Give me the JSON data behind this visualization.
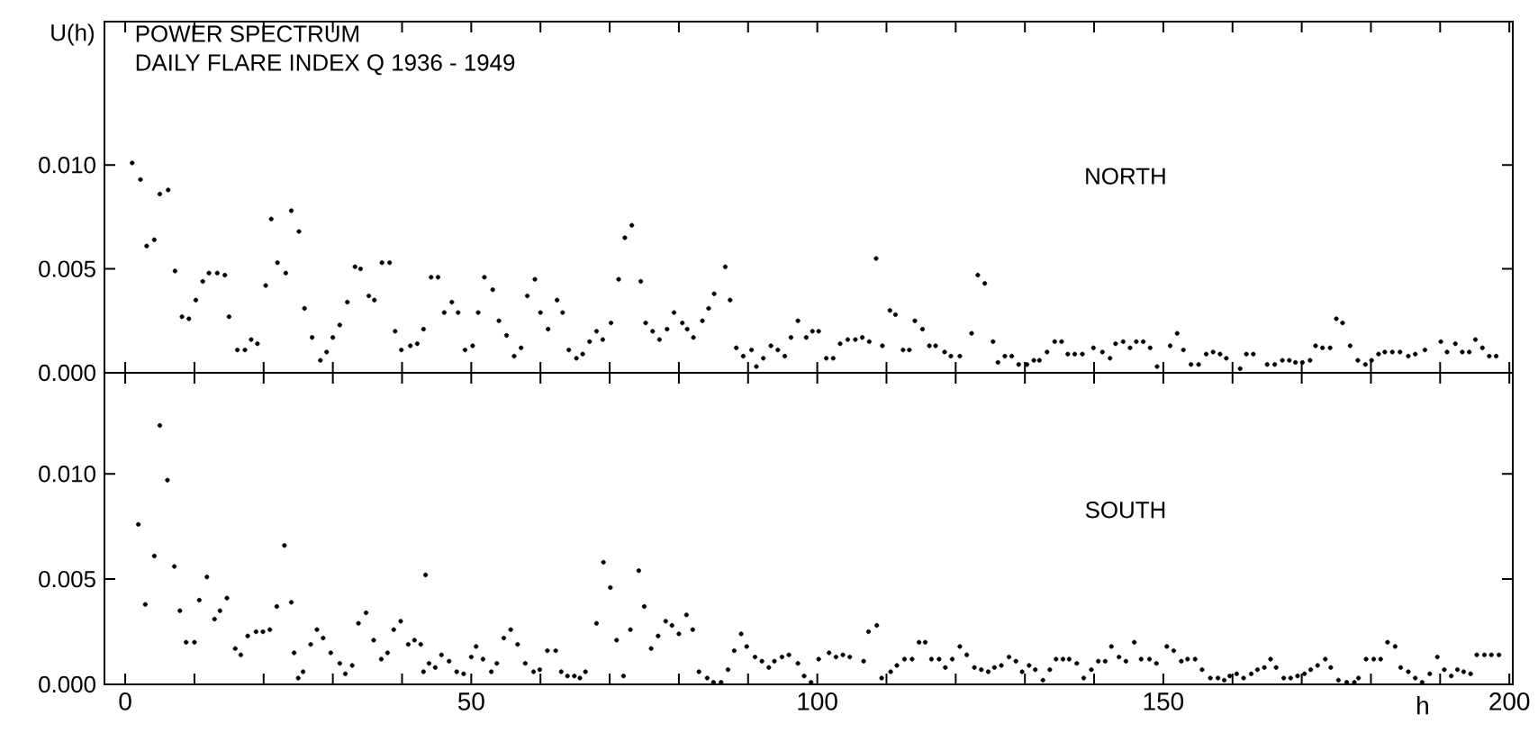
{
  "chart_data": [
    {
      "type": "scatter",
      "title": "POWER SPECTRUM",
      "subtitle": "DAILY FLARE INDEX Q  1936 - 1949",
      "ylabel": "U(h)",
      "annotations": [
        "NORTH"
      ],
      "color": "#000000",
      "marker": "circle",
      "tick_labels": "y",
      "xlim": [
        -3,
        200.5
      ],
      "ylim": [
        0,
        0.0169
      ],
      "xticks": [
        0,
        {
          "value": 10,
          "label": null
        },
        {
          "value": 20,
          "label": null
        },
        {
          "value": 30,
          "label": null
        },
        {
          "value": 40,
          "label": null
        },
        50,
        {
          "value": 60,
          "label": null
        },
        {
          "value": 70,
          "label": null
        },
        {
          "value": 80,
          "label": null
        },
        {
          "value": 90,
          "label": null
        },
        100,
        {
          "value": 110,
          "label": null
        },
        {
          "value": 120,
          "label": null
        },
        {
          "value": 130,
          "label": null
        },
        {
          "value": 140,
          "label": null
        },
        150,
        {
          "value": 160,
          "label": null
        },
        {
          "value": 170,
          "label": null
        },
        {
          "value": 180,
          "label": null
        },
        {
          "value": 190,
          "label": null
        },
        200
      ],
      "yticks": [
        {
          "value": 0,
          "label": "0.000"
        },
        {
          "value": 0.005,
          "label": "0.005"
        },
        {
          "value": 0.01,
          "label": "0.010"
        }
      ],
      "x": [
        1.0,
        2.2,
        3.1,
        4.2,
        5.0,
        6.2,
        7.2,
        8.2,
        9.2,
        10.2,
        11.2,
        12.1,
        13.3,
        14.4,
        15.0,
        16.2,
        17.3,
        18.2,
        19.1,
        20.3,
        21.1,
        22.0,
        23.2,
        24.0,
        25.1,
        25.9,
        27.0,
        28.2,
        29.1,
        30.0,
        31.0,
        32.1,
        33.2,
        34.0,
        35.2,
        36.0,
        37.1,
        38.2,
        39.0,
        39.9,
        41.2,
        42.2,
        43.1,
        44.2,
        45.2,
        46.1,
        47.2,
        48.1,
        49.1,
        50.2,
        51.0,
        51.9,
        53.1,
        54.0,
        55.1,
        56.2,
        57.2,
        58.1,
        59.2,
        60.0,
        61.1,
        62.4,
        63.2,
        64.1,
        65.2,
        66.1,
        67.1,
        68.1,
        69.0,
        70.2,
        71.3,
        72.2,
        73.2,
        74.5,
        75.2,
        76.2,
        77.2,
        78.3,
        79.3,
        80.5,
        81.2,
        82.1,
        83.4,
        84.3,
        85.1,
        86.7,
        87.4,
        88.3,
        89.3,
        90.5,
        91.2,
        92.2,
        93.3,
        94.3,
        95.3,
        96.2,
        97.2,
        98.4,
        99.3,
        100.2,
        101.3,
        102.3,
        103.3,
        104.4,
        105.5,
        106.5,
        107.5,
        108.5,
        109.4,
        110.5,
        111.3,
        112.4,
        113.3,
        114.1,
        115.2,
        116.2,
        117.1,
        118.4,
        119.3,
        120.6,
        122.3,
        123.2,
        124.2,
        125.4,
        126.1,
        127.1,
        128.1,
        129.1,
        130.3,
        131.3,
        132.1,
        133.2,
        134.3,
        135.3,
        136.2,
        137.2,
        138.3,
        139.9,
        141.2,
        142.3,
        143.1,
        144.2,
        145.2,
        146.1,
        147.1,
        148.1,
        149.1,
        151.0,
        152.0,
        152.9,
        154.0,
        155.1,
        156.2,
        157.2,
        158.2,
        159.1,
        161.1,
        162.0,
        163.0,
        165.0,
        166.1,
        167.2,
        168.2,
        169.1,
        170.1,
        171.2,
        172.0,
        173.0,
        174.1,
        175.0,
        175.9,
        177.0,
        178.1,
        179.2,
        180.1,
        181.1,
        182.0,
        183.1,
        184.2,
        185.4,
        186.4,
        187.8,
        190.1,
        191.0,
        192.2,
        193.2,
        194.2,
        195.1,
        196.1,
        197.1,
        198.1
      ],
      "values": [
        0.0101,
        0.0093,
        0.0061,
        0.0064,
        0.0086,
        0.0088,
        0.0049,
        0.0027,
        0.0026,
        0.0035,
        0.0044,
        0.0048,
        0.0048,
        0.0047,
        0.0027,
        0.0011,
        0.0011,
        0.0016,
        0.0014,
        0.0042,
        0.0074,
        0.0053,
        0.0048,
        0.0078,
        0.0068,
        0.0031,
        0.0017,
        0.0006,
        0.001,
        0.0017,
        0.0023,
        0.0034,
        0.0051,
        0.005,
        0.0037,
        0.0035,
        0.0053,
        0.0053,
        0.002,
        0.0011,
        0.0013,
        0.0014,
        0.0021,
        0.0046,
        0.0046,
        0.0029,
        0.0034,
        0.0029,
        0.0011,
        0.0013,
        0.0029,
        0.0046,
        0.004,
        0.0025,
        0.0018,
        0.0008,
        0.0012,
        0.0037,
        0.0045,
        0.0029,
        0.0021,
        0.0035,
        0.0029,
        0.0011,
        0.0007,
        0.0009,
        0.0015,
        0.002,
        0.0016,
        0.0024,
        0.0045,
        0.0065,
        0.0071,
        0.0044,
        0.0024,
        0.002,
        0.0016,
        0.0021,
        0.0029,
        0.0024,
        0.0021,
        0.0017,
        0.0025,
        0.0031,
        0.0038,
        0.0051,
        0.0035,
        0.0012,
        0.0008,
        0.0011,
        0.0003,
        0.0007,
        0.0013,
        0.0011,
        0.0008,
        0.0017,
        0.0025,
        0.0017,
        0.002,
        0.002,
        0.0007,
        0.0007,
        0.0014,
        0.0016,
        0.0016,
        0.0017,
        0.0015,
        0.0055,
        0.0013,
        0.003,
        0.0028,
        0.0011,
        0.0011,
        0.0025,
        0.0021,
        0.0013,
        0.0013,
        0.001,
        0.0008,
        0.0008,
        0.0019,
        0.0047,
        0.0043,
        0.0015,
        0.0005,
        0.0008,
        0.0008,
        0.0004,
        0.0004,
        0.0006,
        0.0006,
        0.001,
        0.0015,
        0.0015,
        0.0009,
        0.0009,
        0.0009,
        0.0012,
        0.001,
        0.0007,
        0.0014,
        0.0015,
        0.0012,
        0.0015,
        0.0015,
        0.0012,
        0.0003,
        0.0013,
        0.0019,
        0.0011,
        0.0004,
        0.0004,
        0.0009,
        0.001,
        0.0009,
        0.0007,
        0.0002,
        0.0009,
        0.0009,
        0.0004,
        0.0004,
        0.0006,
        0.0006,
        0.0005,
        0.0005,
        0.0006,
        0.0013,
        0.0012,
        0.0012,
        0.0026,
        0.0024,
        0.0013,
        0.0006,
        0.0004,
        0.0006,
        0.0009,
        0.001,
        0.001,
        0.001,
        0.0008,
        0.0009,
        0.0011,
        0.0015,
        0.001,
        0.0014,
        0.001,
        0.001,
        0.0016,
        0.0012,
        0.0008,
        0.0008
      ]
    },
    {
      "type": "scatter",
      "xlabel": "h",
      "annotations": [
        "SOUTH"
      ],
      "color": "#000000",
      "marker": "circle",
      "xlim": [
        -3,
        200.5
      ],
      "ylim": [
        0,
        0.0148
      ],
      "xticks": [
        0,
        {
          "value": 10,
          "label": null
        },
        {
          "value": 20,
          "label": null
        },
        {
          "value": 30,
          "label": null
        },
        {
          "value": 40,
          "label": null
        },
        50,
        {
          "value": 60,
          "label": null
        },
        {
          "value": 70,
          "label": null
        },
        {
          "value": 80,
          "label": null
        },
        {
          "value": 90,
          "label": null
        },
        100,
        {
          "value": 110,
          "label": null
        },
        {
          "value": 120,
          "label": null
        },
        {
          "value": 130,
          "label": null
        },
        {
          "value": 140,
          "label": null
        },
        150,
        {
          "value": 160,
          "label": null
        },
        {
          "value": 170,
          "label": null
        },
        {
          "value": 180,
          "label": null
        },
        {
          "value": 190,
          "label": null
        },
        200
      ],
      "yticks": [
        {
          "value": 0,
          "label": "0.000"
        },
        {
          "value": 0.005,
          "label": "0.005"
        },
        {
          "value": 0.01,
          "label": "0.010"
        }
      ],
      "x": [
        1.9,
        2.9,
        4.2,
        5.0,
        6.1,
        7.1,
        7.9,
        8.8,
        10.0,
        10.7,
        11.8,
        12.9,
        13.7,
        14.7,
        15.9,
        16.7,
        17.7,
        18.9,
        19.9,
        20.9,
        21.9,
        23.0,
        24.0,
        24.4,
        25.0,
        25.7,
        26.8,
        27.7,
        28.6,
        29.7,
        31.0,
        31.8,
        32.8,
        33.7,
        34.8,
        35.9,
        37.0,
        37.9,
        38.8,
        39.8,
        40.9,
        41.8,
        42.7,
        43.1,
        43.4,
        43.9,
        44.8,
        45.7,
        46.8,
        47.9,
        48.9,
        50.0,
        50.7,
        51.7,
        52.9,
        53.7,
        54.7,
        55.7,
        56.7,
        57.8,
        59.0,
        59.9,
        61.0,
        62.2,
        63.0,
        63.9,
        64.9,
        65.7,
        66.5,
        68.1,
        69.1,
        70.1,
        71.0,
        72.0,
        73.0,
        74.2,
        75.0,
        76.0,
        77.0,
        78.1,
        79.0,
        80.0,
        81.1,
        82.0,
        82.9,
        84.1,
        85.0,
        86.1,
        87.1,
        88.0,
        89.0,
        89.8,
        91.0,
        92.0,
        93.0,
        93.8,
        94.9,
        95.9,
        97.2,
        98.1,
        99.1,
        100.2,
        101.7,
        102.7,
        103.7,
        104.7,
        106.7,
        107.4,
        108.6,
        109.3,
        110.6,
        111.5,
        112.6,
        113.7,
        114.7,
        115.6,
        116.5,
        117.6,
        118.5,
        119.5,
        120.6,
        121.6,
        122.7,
        123.7,
        124.7,
        125.6,
        126.6,
        127.7,
        128.7,
        129.6,
        130.6,
        131.5,
        132.6,
        133.6,
        134.5,
        135.5,
        136.4,
        137.5,
        138.5,
        139.6,
        140.6,
        141.6,
        142.5,
        143.6,
        144.6,
        145.8,
        146.8,
        148.0,
        149.0,
        150.5,
        151.5,
        152.6,
        153.5,
        154.6,
        155.6,
        156.8,
        157.9,
        158.8,
        159.6,
        160.6,
        161.6,
        162.7,
        163.6,
        164.6,
        165.5,
        166.3,
        167.4,
        168.4,
        169.4,
        170.4,
        171.3,
        172.3,
        173.4,
        174.2,
        175.3,
        176.5,
        177.6,
        178.2,
        179.3,
        180.4,
        181.4,
        182.4,
        183.5,
        184.3,
        185.4,
        186.4,
        187.4,
        188.5,
        189.6,
        190.6,
        191.6,
        192.5,
        193.4,
        194.4,
        195.3,
        196.4,
        197.4,
        198.5
      ],
      "values": [
        0.0076,
        0.0038,
        0.0061,
        0.0123,
        0.0097,
        0.0056,
        0.0035,
        0.002,
        0.002,
        0.004,
        0.0051,
        0.0031,
        0.0035,
        0.0041,
        0.0017,
        0.0014,
        0.0023,
        0.0025,
        0.0025,
        0.0026,
        0.0037,
        0.0066,
        0.0039,
        0.0015,
        0.0003,
        0.0006,
        0.0019,
        0.0026,
        0.0022,
        0.0015,
        0.001,
        0.0005,
        0.0009,
        0.0029,
        0.0034,
        0.0021,
        0.0012,
        0.0015,
        0.0026,
        0.003,
        0.0019,
        0.0021,
        0.0019,
        0.0006,
        0.0052,
        0.001,
        0.0008,
        0.0014,
        0.0011,
        0.0006,
        0.0005,
        0.0013,
        0.0018,
        0.0012,
        0.0006,
        0.001,
        0.0022,
        0.0026,
        0.0019,
        0.001,
        0.0006,
        0.0007,
        0.0016,
        0.0016,
        0.0006,
        0.0004,
        0.0004,
        0.0003,
        0.0006,
        0.0029,
        0.0058,
        0.0046,
        0.0021,
        0.0004,
        0.0026,
        0.0054,
        0.0037,
        0.0017,
        0.0023,
        0.003,
        0.0028,
        0.0024,
        0.0033,
        0.0026,
        0.0006,
        0.0003,
        0.0001,
        0.0001,
        0.0007,
        0.0016,
        0.0024,
        0.0018,
        0.0013,
        0.0011,
        0.0008,
        0.0011,
        0.0013,
        0.0014,
        0.001,
        0.0004,
        0.0001,
        0.0012,
        0.0015,
        0.0013,
        0.0014,
        0.0013,
        0.0011,
        0.0025,
        0.0028,
        0.0003,
        0.0006,
        0.0009,
        0.0012,
        0.0012,
        0.002,
        0.002,
        0.0012,
        0.0012,
        0.0008,
        0.0012,
        0.0018,
        0.0014,
        0.0008,
        0.0007,
        0.0006,
        0.0008,
        0.0009,
        0.0013,
        0.0011,
        0.0006,
        0.0009,
        0.0007,
        0.0002,
        0.0007,
        0.0012,
        0.0012,
        0.0012,
        0.001,
        0.0003,
        0.0007,
        0.0011,
        0.0011,
        0.0018,
        0.0013,
        0.0011,
        0.002,
        0.0012,
        0.0012,
        0.001,
        0.0018,
        0.0016,
        0.0011,
        0.0012,
        0.0012,
        0.0007,
        0.0003,
        0.0003,
        0.0002,
        0.0004,
        0.0005,
        0.0003,
        0.0005,
        0.0007,
        0.0008,
        0.0012,
        0.0008,
        0.0003,
        0.0003,
        0.0004,
        0.0005,
        0.0007,
        0.0009,
        0.0012,
        0.0008,
        0.0002,
        0.0001,
        0.0001,
        0.0003,
        0.0012,
        0.0012,
        0.0012,
        0.002,
        0.0018,
        0.0008,
        0.0006,
        0.0003,
        0.0001,
        0.0005,
        0.0013,
        0.0007,
        0.0004,
        0.0007,
        0.0006,
        0.0005,
        0.0014,
        0.0014,
        0.0014,
        0.0014
      ]
    }
  ]
}
